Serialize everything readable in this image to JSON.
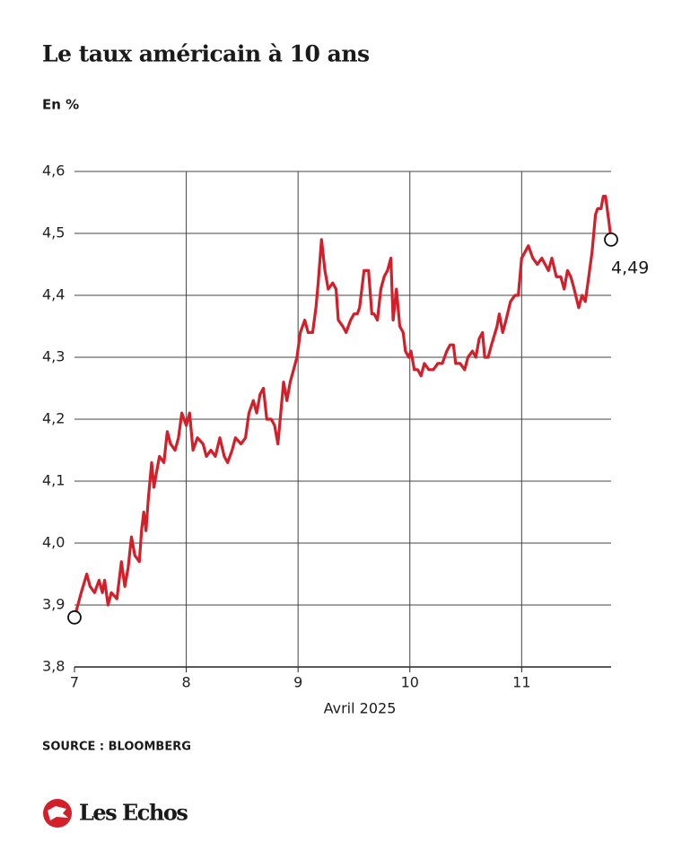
{
  "chart_data": {
    "type": "line",
    "title": "Le taux  américain à 10 ans",
    "subtitle": "En %",
    "x_label": "Avril 2025",
    "source": "SOURCE : BLOOMBERG",
    "brand": "Les Echos",
    "annotation": "4,49",
    "color": "#d21f2a",
    "grid": true,
    "xlim": [
      7,
      11.8
    ],
    "xticks": [
      7,
      8,
      9,
      10,
      11
    ],
    "ylim": [
      3.8,
      4.6
    ],
    "yticks": [
      {
        "value": 3.8,
        "label": "3,8"
      },
      {
        "value": 3.9,
        "label": "3,9"
      },
      {
        "value": 4.0,
        "label": "4,0"
      },
      {
        "value": 4.1,
        "label": "4,1"
      },
      {
        "value": 4.2,
        "label": "4,2"
      },
      {
        "value": 4.3,
        "label": "4,3"
      },
      {
        "value": 4.4,
        "label": "4,4"
      },
      {
        "value": 4.5,
        "label": "4,5"
      },
      {
        "value": 4.6,
        "label": "4,6"
      }
    ],
    "x": [
      7.0,
      7.06,
      7.11,
      7.14,
      7.18,
      7.22,
      7.25,
      7.27,
      7.3,
      7.33,
      7.38,
      7.42,
      7.45,
      7.48,
      7.51,
      7.54,
      7.58,
      7.6,
      7.62,
      7.64,
      7.66,
      7.69,
      7.71,
      7.73,
      7.76,
      7.8,
      7.83,
      7.86,
      7.9,
      7.93,
      7.96,
      8.0,
      8.03,
      8.06,
      8.1,
      8.15,
      8.18,
      8.22,
      8.26,
      8.3,
      8.34,
      8.37,
      8.41,
      8.44,
      8.49,
      8.53,
      8.56,
      8.6,
      8.63,
      8.66,
      8.69,
      8.72,
      8.76,
      8.79,
      8.82,
      8.85,
      8.87,
      8.9,
      8.93,
      8.96,
      8.99,
      9.02,
      9.06,
      9.09,
      9.13,
      9.16,
      9.18,
      9.21,
      9.24,
      9.27,
      9.31,
      9.34,
      9.36,
      9.4,
      9.43,
      9.47,
      9.5,
      9.53,
      9.55,
      9.59,
      9.63,
      9.66,
      9.68,
      9.71,
      9.74,
      9.77,
      9.8,
      9.83,
      9.85,
      9.88,
      9.91,
      9.94,
      9.96,
      9.99,
      10.01,
      10.04,
      10.07,
      10.1,
      10.13,
      10.17,
      10.21,
      10.25,
      10.29,
      10.33,
      10.36,
      10.39,
      10.41,
      10.45,
      10.49,
      10.52,
      10.56,
      10.59,
      10.62,
      10.65,
      10.67,
      10.7,
      10.73,
      10.78,
      10.8,
      10.83,
      10.86,
      10.9,
      10.94,
      10.97,
      11.0,
      11.03,
      11.06,
      11.1,
      11.14,
      11.18,
      11.21,
      11.24,
      11.27,
      11.31,
      11.35,
      11.38,
      11.41,
      11.44,
      11.47,
      11.51,
      11.54,
      11.57,
      11.6,
      11.63,
      11.66,
      11.68,
      11.71,
      11.73,
      11.75,
      11.78,
      11.8
    ],
    "values": [
      3.88,
      3.92,
      3.95,
      3.93,
      3.92,
      3.94,
      3.92,
      3.94,
      3.9,
      3.92,
      3.91,
      3.97,
      3.93,
      3.96,
      4.01,
      3.98,
      3.97,
      4.02,
      4.05,
      4.02,
      4.07,
      4.13,
      4.09,
      4.11,
      4.14,
      4.13,
      4.18,
      4.16,
      4.15,
      4.17,
      4.21,
      4.19,
      4.21,
      4.15,
      4.17,
      4.16,
      4.14,
      4.15,
      4.14,
      4.17,
      4.14,
      4.13,
      4.15,
      4.17,
      4.16,
      4.17,
      4.21,
      4.23,
      4.21,
      4.24,
      4.25,
      4.2,
      4.2,
      4.19,
      4.16,
      4.22,
      4.26,
      4.23,
      4.26,
      4.28,
      4.3,
      4.34,
      4.36,
      4.34,
      4.34,
      4.38,
      4.42,
      4.49,
      4.44,
      4.41,
      4.42,
      4.41,
      4.36,
      4.35,
      4.34,
      4.36,
      4.37,
      4.37,
      4.38,
      4.44,
      4.44,
      4.37,
      4.37,
      4.36,
      4.41,
      4.43,
      4.44,
      4.46,
      4.36,
      4.41,
      4.35,
      4.34,
      4.31,
      4.3,
      4.31,
      4.28,
      4.28,
      4.27,
      4.29,
      4.28,
      4.28,
      4.29,
      4.29,
      4.31,
      4.32,
      4.32,
      4.29,
      4.29,
      4.28,
      4.3,
      4.31,
      4.3,
      4.33,
      4.34,
      4.3,
      4.3,
      4.32,
      4.35,
      4.37,
      4.34,
      4.36,
      4.39,
      4.4,
      4.4,
      4.46,
      4.47,
      4.48,
      4.46,
      4.45,
      4.46,
      4.45,
      4.44,
      4.46,
      4.43,
      4.43,
      4.41,
      4.44,
      4.43,
      4.41,
      4.38,
      4.4,
      4.39,
      4.43,
      4.47,
      4.53,
      4.54,
      4.54,
      4.56,
      4.56,
      4.52,
      4.49
    ]
  }
}
